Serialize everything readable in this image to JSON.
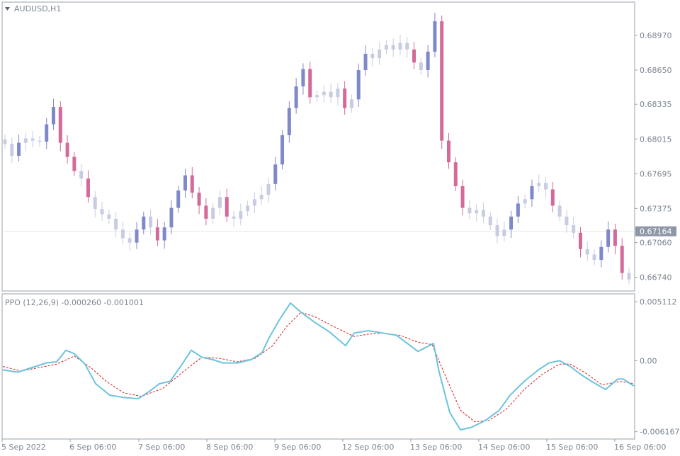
{
  "window": {
    "symbol_label": "AUDUSD,H1",
    "indicator_label": "PPO (12,26,9) -0.000260 -0.001001"
  },
  "colors": {
    "bull": "#7f89c9",
    "bear": "#d46a9a",
    "neutral": "#c7cce3",
    "ppo": "#6cc3de",
    "signal": "#d62020",
    "axis_text": "#7c8592",
    "border": "#9aa0a8",
    "current_price_bg": "#8e97a6"
  },
  "chart_data": [
    {
      "type": "candlestick",
      "title": "AUDUSD,H1",
      "ylim": [
        0.6662,
        0.6927
      ],
      "y_ticks": [
        0.6897,
        0.6865,
        0.68335,
        0.68015,
        0.67695,
        0.67375,
        0.6706,
        0.6674
      ],
      "y_tick_labels": [
        "0.68970",
        "0.68650",
        "0.68335",
        "0.68015",
        "0.67695",
        "0.67375",
        "0.67060",
        "0.66740"
      ],
      "current_price": 0.67164,
      "current_price_label": "0.67164",
      "x_labels": [
        "5 Sep 2022",
        "6 Sep 06:00",
        "7 Sep 06:00",
        "8 Sep 06:00",
        "9 Sep 06:00",
        "12 Sep 06:00",
        "13 Sep 06:00",
        "14 Sep 06:00",
        "15 Sep 06:00",
        "16 Sep 06:00"
      ],
      "close_path": [
        0.6797,
        0.6786,
        0.6798,
        0.6802,
        0.68,
        0.6799,
        0.6815,
        0.6831,
        0.6798,
        0.6785,
        0.6772,
        0.6765,
        0.6748,
        0.6737,
        0.6732,
        0.6728,
        0.6718,
        0.671,
        0.6706,
        0.6718,
        0.673,
        0.672,
        0.6708,
        0.672,
        0.6738,
        0.6754,
        0.6768,
        0.6752,
        0.674,
        0.6728,
        0.6738,
        0.6748,
        0.673,
        0.6728,
        0.6735,
        0.674,
        0.6746,
        0.675,
        0.676,
        0.6778,
        0.6805,
        0.683,
        0.685,
        0.6866,
        0.684,
        0.6842,
        0.6845,
        0.684,
        0.6848,
        0.683,
        0.6838,
        0.6865,
        0.688,
        0.6876,
        0.6884,
        0.6888,
        0.6884,
        0.689,
        0.6884,
        0.6872,
        0.6865,
        0.6882,
        0.691,
        0.68,
        0.678,
        0.6758,
        0.6738,
        0.6733,
        0.6736,
        0.673,
        0.6722,
        0.6712,
        0.6718,
        0.673,
        0.6742,
        0.6746,
        0.6758,
        0.6761,
        0.6755,
        0.674,
        0.673,
        0.6722,
        0.6715,
        0.67,
        0.6695,
        0.669,
        0.6702,
        0.6718,
        0.6703,
        0.6678,
        0.6672
      ]
    },
    {
      "type": "line",
      "title": "PPO (12,26,9) -0.000260 -0.001001",
      "ylim": [
        -0.0068,
        0.0058
      ],
      "y_ticks": [
        0.005112,
        0.0,
        -0.006167
      ],
      "y_tick_labels": [
        "0.005112",
        "0.00",
        "-0.006167"
      ],
      "series": [
        {
          "name": "PPO",
          "points": [
            [
              4,
              -0.0008
            ],
            [
              25,
              -0.001
            ],
            [
              45,
              -0.0006
            ],
            [
              65,
              -0.0002
            ],
            [
              80,
              -0.0001
            ],
            [
              93,
              0.0009
            ],
            [
              105,
              0.0006
            ],
            [
              120,
              -0.0003
            ],
            [
              135,
              -0.002
            ],
            [
              155,
              -0.003
            ],
            [
              175,
              -0.0032
            ],
            [
              195,
              -0.0033
            ],
            [
              210,
              -0.0027
            ],
            [
              225,
              -0.002
            ],
            [
              240,
              -0.0018
            ],
            [
              255,
              -0.0005
            ],
            [
              270,
              0.0009
            ],
            [
              285,
              0.0003
            ],
            [
              300,
              0.0001
            ],
            [
              315,
              -0.0002
            ],
            [
              335,
              -0.0002
            ],
            [
              355,
              0.0001
            ],
            [
              370,
              0.0007
            ],
            [
              380,
              0.002
            ],
            [
              395,
              0.0036
            ],
            [
              410,
              0.005
            ],
            [
              425,
              0.0042
            ],
            [
              445,
              0.0033
            ],
            [
              465,
              0.0025
            ],
            [
              488,
              0.0013
            ],
            [
              500,
              0.0024
            ],
            [
              520,
              0.0026
            ],
            [
              540,
              0.0024
            ],
            [
              560,
              0.0022
            ],
            [
              575,
              0.0015
            ],
            [
              590,
              0.0008
            ],
            [
              612,
              0.0015
            ],
            [
              620,
              -0.001
            ],
            [
              635,
              -0.0045
            ],
            [
              650,
              -0.006
            ],
            [
              665,
              -0.0058
            ],
            [
              685,
              -0.0052
            ],
            [
              705,
              -0.0043
            ],
            [
              720,
              -0.003
            ],
            [
              740,
              -0.0018
            ],
            [
              760,
              -0.0008
            ],
            [
              775,
              -0.0002
            ],
            [
              790,
              0.0
            ],
            [
              805,
              -0.0005
            ],
            [
              820,
              -0.0012
            ],
            [
              835,
              -0.0018
            ],
            [
              855,
              -0.0025
            ],
            [
              872,
              -0.0016
            ],
            [
              880,
              -0.0016
            ],
            [
              895,
              -0.0022
            ]
          ]
        },
        {
          "name": "Signal",
          "points": [
            [
              4,
              -0.0005
            ],
            [
              30,
              -0.0009
            ],
            [
              55,
              -0.0006
            ],
            [
              80,
              -0.0003
            ],
            [
              105,
              0.0004
            ],
            [
              130,
              -0.0007
            ],
            [
              150,
              -0.0018
            ],
            [
              175,
              -0.0028
            ],
            [
              200,
              -0.0031
            ],
            [
              230,
              -0.0024
            ],
            [
              260,
              -0.0009
            ],
            [
              285,
              0.0003
            ],
            [
              310,
              0.0002
            ],
            [
              335,
              -0.0001
            ],
            [
              360,
              0.0002
            ],
            [
              385,
              0.0013
            ],
            [
              405,
              0.003
            ],
            [
              425,
              0.0042
            ],
            [
              445,
              0.0038
            ],
            [
              470,
              0.003
            ],
            [
              500,
              0.0021
            ],
            [
              520,
              0.0023
            ],
            [
              540,
              0.0024
            ],
            [
              565,
              0.0022
            ],
            [
              590,
              0.0016
            ],
            [
              610,
              0.0014
            ],
            [
              630,
              -0.0015
            ],
            [
              650,
              -0.0043
            ],
            [
              670,
              -0.0053
            ],
            [
              690,
              -0.0052
            ],
            [
              715,
              -0.0042
            ],
            [
              740,
              -0.0025
            ],
            [
              765,
              -0.0012
            ],
            [
              790,
              -0.0003
            ],
            [
              805,
              -0.0003
            ],
            [
              825,
              -0.001
            ],
            [
              850,
              -0.0021
            ],
            [
              875,
              -0.0018
            ],
            [
              895,
              -0.002
            ]
          ]
        }
      ]
    }
  ]
}
